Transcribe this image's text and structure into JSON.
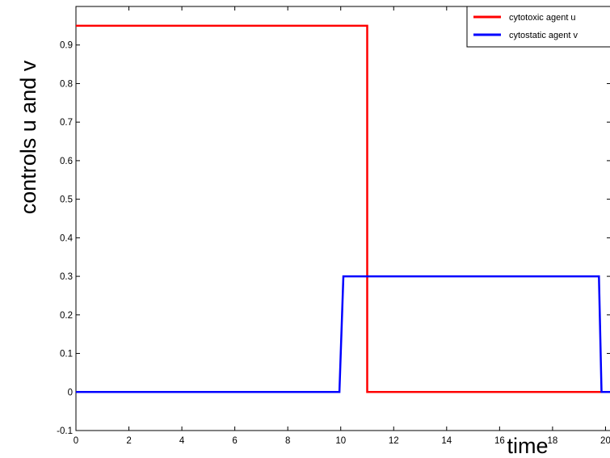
{
  "chart_data": {
    "type": "line",
    "xlabel": "time",
    "ylabel": "controls u and v",
    "xlim": [
      0,
      20.2
    ],
    "ylim": [
      -0.1,
      1.0
    ],
    "xticks": [
      0,
      2,
      4,
      6,
      8,
      10,
      12,
      14,
      16,
      18,
      20
    ],
    "yticks": [
      -0.1,
      0,
      0.1,
      0.2,
      0.3,
      0.4,
      0.5,
      0.6,
      0.7,
      0.8,
      0.9
    ],
    "xtick_labels": [
      "0",
      "2",
      "4",
      "6",
      "8",
      "10",
      "12",
      "14",
      "16",
      "18",
      "20"
    ],
    "ytick_labels": [
      "-0.1",
      "0",
      "0.1",
      "0.2",
      "0.3",
      "0.4",
      "0.5",
      "0.6",
      "0.7",
      "0.8",
      "0.9"
    ],
    "grid": false,
    "legend_position": "top-right",
    "series": [
      {
        "name": "cytotoxic agent u",
        "color": "#ff0000",
        "x": [
          0,
          11.0,
          11.0,
          20.2
        ],
        "y": [
          0.95,
          0.95,
          0,
          0
        ]
      },
      {
        "name": "cytostatic agent v",
        "color": "#0000ff",
        "x": [
          0,
          9.95,
          10.1,
          19.75,
          19.85,
          20.2
        ],
        "y": [
          0,
          0,
          0.3,
          0.3,
          0,
          0
        ]
      }
    ]
  }
}
